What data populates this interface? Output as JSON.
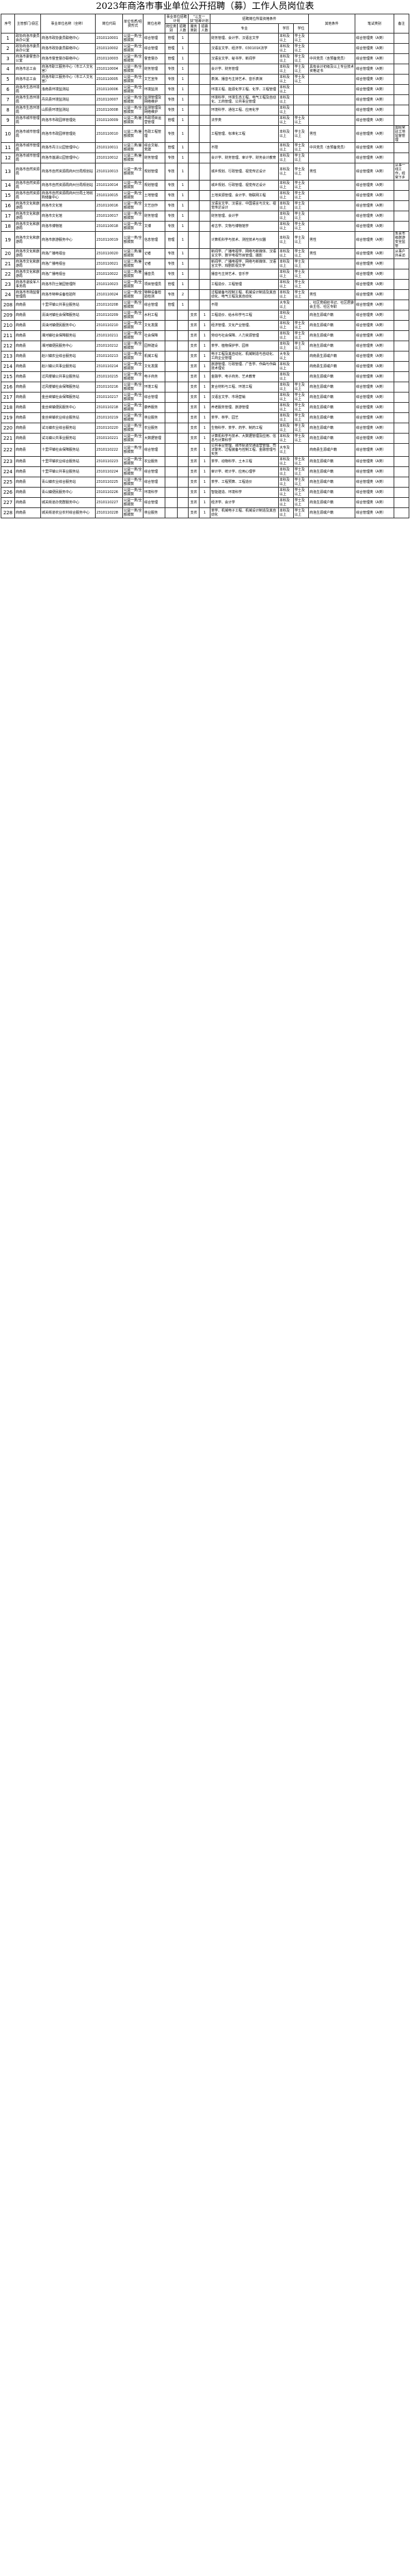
{
  "title": "2023年商洛市事业单位公开招聘（募）工作人员岗位表",
  "headers": {
    "no": "序号",
    "dept": "主管部门/县区",
    "unit": "事业单位名称（全称）",
    "code": "岗位代码",
    "nature": "单位性质/经费形式",
    "post": "岗位名称",
    "plan": "事业单位招聘计划",
    "plan_type": "岗位类别",
    "plan_count": "招聘人数",
    "sanzhi": "\"三支一扶\"招募计划",
    "sanzhi_type": "服务类别",
    "sanzhi_count": "招募人数",
    "req": "招聘岗位所需资格条件",
    "major": "专业",
    "edu": "学历",
    "degree": "学位",
    "other": "其他条件",
    "exam": "笔试类别",
    "note": "备注"
  },
  "rows": [
    [
      "1",
      "政协商洛市委员会办公室",
      "商洛市政协委员联络中心",
      "2310110001",
      "公益一类/全额拨款",
      "综合管理",
      "管理",
      "1",
      "",
      "",
      "财务管理、会计学、汉语言文学",
      "本科及以上",
      "学士及以上",
      "",
      "综合管理类（A类）",
      ""
    ],
    [
      "2",
      "政协商洛市委员会办公室",
      "商洛市政协委员联络中心",
      "2310110002",
      "公益一类/全额拨款",
      "综合管理",
      "管理",
      "1",
      "",
      "",
      "汉语言文学、经济学、030101K法学",
      "本科及以上",
      "学士及以上",
      "",
      "综合管理类（A类）",
      ""
    ],
    [
      "3",
      "商洛市委督查办公室",
      "商洛市督查督办联络中心",
      "2310110003",
      "公益一类/全额拨款",
      "督查督办",
      "管理",
      "1",
      "",
      "",
      "汉语言文学、秘书学、新闻学",
      "本科及以上",
      "学士及以上",
      "中共党员（含预备党员）",
      "综合管理类（A类）",
      ""
    ],
    [
      "4",
      "商洛市总工会",
      "商洛市职工服务中心（市工人文化宫）",
      "2310110004",
      "公益一类/全额拨款",
      "财务管理",
      "专技",
      "1",
      "",
      "",
      "会计学、财务管理",
      "本科及以上",
      "学士及以上",
      "具有会计初级及以上专业技术资格证书",
      "综合管理类（A类）",
      ""
    ],
    [
      "5",
      "商洛市总工会",
      "商洛市职工服务中心（市工人文化宫）",
      "2310110005",
      "公益一类/全额拨款",
      "文艺宣传",
      "专技",
      "1",
      "",
      "",
      "表演、播音与主持艺术、音乐表演",
      "本科及以上",
      "学士及以上",
      "",
      "综合管理类（A类）",
      ""
    ],
    [
      "6",
      "商洛市生态环境局",
      "洛南县环境监测站",
      "2310110006",
      "公益一类/全额拨款",
      "环境监测",
      "专技",
      "1",
      "",
      "",
      "环境工程、能源化学工程、化学、工程管理",
      "本科及以上",
      "",
      "",
      "综合管理类（A类）",
      ""
    ],
    [
      "7",
      "商洛市生态环境局",
      "丹凤县环境监测站",
      "2310110007",
      "公益一类/全额拨款",
      "监测管理及网络维护",
      "专技",
      "1",
      "",
      "",
      "环境科学、环境生态工程、电气工程及自动化、工商管理、公共事业管理",
      "本科及以上",
      "",
      "",
      "综合管理类（A类）",
      ""
    ],
    [
      "8",
      "商洛市生态环境局",
      "山阳县环境监测站",
      "2310110008",
      "公益一类/全额拨款",
      "监测管理及网络维护",
      "专技",
      "1",
      "",
      "",
      "环境科学、通信工程、应用化学",
      "本科及以上",
      "",
      "",
      "综合管理类（A类）",
      ""
    ],
    [
      "9",
      "商洛市城市管理局",
      "商洛市市政园林管理处",
      "2310110009",
      "公益二类/差额拨款",
      "市政项目运营管理",
      "管理",
      "1",
      "",
      "",
      "法学类",
      "本科及以上",
      "学士及以上",
      "",
      "综合管理类（A类）",
      ""
    ],
    [
      "10",
      "商洛市城市管理局",
      "商洛市市政园林管理处",
      "2310110010",
      "公益二类/差额拨款",
      "市政工程管理",
      "专技",
      "1",
      "",
      "",
      "工程管理、标准化工程",
      "本科及以上",
      "学士及以上",
      "男性",
      "综合管理类（A类）",
      "需经常驻工地监督管理"
    ],
    [
      "11",
      "商洛市城市管理局",
      "商洛市丹江公园管理中心",
      "2310110011",
      "公益二类/差额拨款",
      "综合文秘、党建",
      "管理",
      "1",
      "",
      "",
      "不限",
      "本科及以上",
      "学士及以上",
      "中共党员（含预备党员）",
      "综合管理类（A类）",
      ""
    ],
    [
      "12",
      "商洛市城市管理局",
      "商洛市莲湖公园管理中心",
      "2310110012",
      "公益二类/差额拨款",
      "财务管理",
      "专技",
      "1",
      "",
      "",
      "会计学、财务管理、审计学、财务会计教育",
      "本科及以上",
      "学士及以上",
      "",
      "综合管理类（A类）",
      ""
    ],
    [
      "13",
      "商洛市自然资源局",
      "商洛市自然资源局商州分局规划站",
      "2310110013",
      "公益一类/全额拨款",
      "规划管理",
      "专技",
      "1",
      "",
      "",
      "城乡规划、行政管理、视觉传达设计",
      "本科及以上",
      "学士及以上",
      "男性",
      "综合管理类（A类）",
      "从事一线工作，经常下乡"
    ],
    [
      "14",
      "商洛市自然资源局",
      "商洛市自然资源局商州分局规划站",
      "2310110014",
      "公益一类/全额拨款",
      "规划管理",
      "专技",
      "1",
      "",
      "",
      "城乡规划、行政管理、视觉传达设计",
      "本科及以上",
      "学士及以上",
      "",
      "综合管理类（A类）",
      ""
    ],
    [
      "15",
      "商洛市自然资源局",
      "商洛市自然资源局商州分局土地收购储备中心",
      "2310110015",
      "公益一类/全额拨款",
      "土地管理",
      "专技",
      "1",
      "",
      "",
      "土地资源管理、会计学、物联网工程",
      "本科及以上",
      "学士及以上",
      "",
      "综合管理类（A类）",
      ""
    ],
    [
      "16",
      "商洛市文化和旅游局",
      "商洛市文化馆",
      "2310110016",
      "公益一类/全额拨款",
      "文艺创作",
      "专技",
      "1",
      "",
      "",
      "汉语言文学、汉语言、中国语言与文化、视觉传达设计",
      "本科及以上",
      "学士及以上",
      "",
      "综合管理类（A类）",
      ""
    ],
    [
      "17",
      "商洛市文化和旅游局",
      "商洛市文化馆",
      "2310110017",
      "公益一类/全额拨款",
      "财务管理",
      "专技",
      "1",
      "",
      "",
      "财务管理、会计学",
      "本科及以上",
      "学士及以上",
      "",
      "综合管理类（A类）",
      ""
    ],
    [
      "18",
      "商洛市文化和旅游局",
      "商洛市博物馆",
      "2310110018",
      "公益一类/全额拨款",
      "文博",
      "专技",
      "1",
      "",
      "",
      "考古学、文物与博物馆学",
      "本科及以上",
      "学士及以上",
      "",
      "综合管理类（A类）",
      ""
    ],
    [
      "19",
      "商洛市文化和旅游局",
      "商洛市旅游服务中心",
      "2310110019",
      "公益一类/全额拨款",
      "信息管理",
      "管理",
      "1",
      "",
      "",
      "计算机科学与技术、测控技术与仪器",
      "本科及以上",
      "学士及以上",
      "男性",
      "综合管理类（A类）",
      "负责市级旅游安全监管"
    ],
    [
      "20",
      "商洛市文化和旅游局",
      "商洛广播电视台",
      "2310110020",
      "公益二类/差额拨款",
      "记者",
      "专技",
      "1",
      "",
      "",
      "新闻学、广播电视学、网络与新媒体、汉语言文学、数字电视节目管理、摄影",
      "本科及以上",
      "学士及以上",
      "男性",
      "综合管理类（A类）",
      "从事户外采访"
    ],
    [
      "21",
      "商洛市文化和旅游局",
      "商洛广播电视台",
      "2310110021",
      "公益二类/差额拨款",
      "记者",
      "专技",
      "1",
      "",
      "",
      "新闻学、广播电视学、网络与新媒体、汉语言文学、戏剧影视文学",
      "本科及以上",
      "学士及以上",
      "",
      "综合管理类（A类）",
      ""
    ],
    [
      "22",
      "商洛市文化和旅游局",
      "商洛广播电视台",
      "2310110022",
      "公益二类/差额拨款",
      "播音员",
      "专技",
      "1",
      "",
      "",
      "播音与主持艺术、音乐学",
      "本科及以上",
      "学士及以上",
      "",
      "综合管理类（A类）",
      ""
    ],
    [
      "23",
      "商洛市退役军人事务局",
      "商洛市烈士陵园管理所",
      "2310110023",
      "公益一类/全额拨款",
      "项目管理员",
      "管理",
      "1",
      "",
      "",
      "工程造价、工程管理",
      "本科及以上",
      "学士及以上",
      "",
      "综合管理类（A类）",
      ""
    ],
    [
      "24",
      "商洛市市场监督管理局",
      "商洛市特种设备检验所",
      "2310110024",
      "公益一类/全额拨款",
      "特种设备检验检测",
      "专技",
      "2",
      "",
      "",
      "过程装备与控制工程、机械设计制造及其自动化、电气工程及其自动化",
      "本科及以上",
      "学士及以上",
      "男性",
      "综合管理类（A类）",
      ""
    ],
    [
      "208",
      "商南县",
      "十里坪镇公共事业服务站",
      "2310110208",
      "公益一类/全额拨款",
      "综合管理",
      "管理",
      "1",
      "",
      "",
      "不限",
      "大专及以上",
      "",
      "、社区党组织书记、社区居委会主任、社区专职",
      "综合管理类（A类）",
      ""
    ],
    [
      "209",
      "商南县",
      "清油河镇社会保障服务站",
      "2310110209",
      "公益一类/全额拨款",
      "水利工程",
      "",
      "",
      "支农",
      "1",
      "工程造价、给水科学与工程",
      "本科及以上",
      "",
      "商洛生源或户籍",
      "综合管理类（A类）",
      ""
    ],
    [
      "210",
      "商南县",
      "清油河镇便民服务中心",
      "2310110210",
      "公益一类/全额拨款",
      "文化发展",
      "",
      "",
      "支农",
      "1",
      "经济管理、文化产业管理、",
      "本科及以上",
      "学士及以上",
      "商洛生源或户籍",
      "综合管理类（A类）",
      ""
    ],
    [
      "211",
      "商南县",
      "湘河镇社会保障服务站",
      "2310110211",
      "公益一类/全额拨款",
      "社会保障",
      "",
      "",
      "支农",
      "1",
      "劳动与社会保障、人力资源管理",
      "本科及以上",
      "学士及以上",
      "商洛生源或户籍",
      "综合管理类（A类）",
      ""
    ],
    [
      "212",
      "商南县",
      "湘河镇便民服务中心",
      "2310110212",
      "公益一类/全额拨款",
      "园林建设",
      "",
      "",
      "支农",
      "1",
      "茶学、植物保护学、园林",
      "本科及以上",
      "学士及以上",
      "商洛生源或户籍",
      "综合管理类（A类）",
      ""
    ],
    [
      "213",
      "商南县",
      "赵川镇农业综合服务站",
      "2310110213",
      "公益一类/全额拨款",
      "机械工程",
      "",
      "",
      "支农",
      "1",
      "电子工程及其自动化、机械制造与自动化、工商企业管理",
      "大专及以上",
      "",
      "商南县生源或户籍",
      "综合管理类（A类）",
      ""
    ],
    [
      "214",
      "商南县",
      "赵川镇公共事业服务站",
      "2310110214",
      "公益一类/全额拨款",
      "文化发展",
      "",
      "",
      "支农",
      "1",
      "旅游管理、行政管理、广告学、作曲与作曲技术理论",
      "本科及以上",
      "",
      "商南县生源或户籍",
      "综合管理类（A类）",
      ""
    ],
    [
      "215",
      "商南县",
      "过风楼镇公共事业服务站",
      "2310110215",
      "公益一类/全额拨款",
      "电子商务",
      "",
      "",
      "支农",
      "1",
      "金融学、电子商务、艺术教育",
      "本科及以上",
      "",
      "商洛生源或户籍",
      "综合管理类（A类）",
      ""
    ],
    [
      "216",
      "商南县",
      "过风楼镇社会保障服务站",
      "2310110216",
      "公益一类/全额拨款",
      "环境工程",
      "",
      "",
      "支农",
      "1",
      "复合材料与工程、环境工程",
      "本科及以上",
      "学士及以上",
      "商洛生源或户籍",
      "综合管理类（A类）",
      ""
    ],
    [
      "217",
      "商南县",
      "金丝峡镇社会保障服务站",
      "2310110217",
      "公益一类/全额拨款",
      "综合管理",
      "",
      "",
      "支农",
      "1",
      "汉语言文学、市场营销",
      "本科及以上",
      "学士及以上",
      "商洛生源或户籍",
      "综合管理类（A类）",
      ""
    ],
    [
      "218",
      "商南县",
      "金丝峡镇便民服务中心",
      "2310110218",
      "公益一类/全额拨款",
      "康养服务",
      "",
      "",
      "支农",
      "1",
      "养老服务管理、旅游管理",
      "本科及以上",
      "学士及以上",
      "商洛生源或户籍",
      "综合管理类（A类）",
      ""
    ],
    [
      "219",
      "商南县",
      "金丝峡镇农业综合服务站",
      "2310110219",
      "公益一类/全额拨款",
      "林业服务",
      "",
      "",
      "支农",
      "1",
      "茶学、林学、园艺",
      "本科及以上",
      "学士及以上",
      "商洛生源或户籍",
      "综合管理类（A类）",
      ""
    ],
    [
      "220",
      "商南县",
      "试马镇农业综合服务站",
      "2310110220",
      "公益一类/全额拨款",
      "农业服务",
      "",
      "",
      "支农",
      "1",
      "生物科学、茶学、药学、制药工程",
      "本科及以上",
      "学士及以上",
      "商洛生源或户籍",
      "综合管理类（A类）",
      ""
    ],
    [
      "221",
      "商南县",
      "试马镇公共事业服务站",
      "2310110221",
      "公益一类/全额拨款",
      "大数据管理",
      "",
      "",
      "支农",
      "1",
      "计算机科学与技术、大数据管理及应用、信息与计算科学",
      "本科及以上",
      "学士及以上",
      "商洛生源或户籍",
      "综合管理类（A类）",
      ""
    ],
    [
      "222",
      "商南县",
      "十里坪镇社会保障服务站",
      "2310110222",
      "公益一类/全额拨款",
      "综合管理",
      "",
      "",
      "支农",
      "1",
      "公共事业管理、城市轨道交通运营管理、司法警务、过程装备与控制工程、金融管理与实务",
      "大专及以上",
      "",
      "商南县生源或户籍",
      "综合管理类（A类）",
      ""
    ],
    [
      "223",
      "商南县",
      "十里坪镇农业综合服务站",
      "2310110223",
      "公益一类/全额拨款",
      "农业服务",
      "",
      "",
      "支农",
      "1",
      "茶学、动物科学、土木工程",
      "本科及以上",
      "学士及以上",
      "商洛生源或户籍",
      "综合管理类（A类）",
      ""
    ],
    [
      "224",
      "商南县",
      "十里坪镇公共事业服务站",
      "2310110224",
      "公益一类/全额拨款",
      "综合管理",
      "",
      "",
      "支农",
      "1",
      "审计学、统计学、应用心理学",
      "本科及以上",
      "学士及以上",
      "商洛生源或户籍",
      "综合管理类（A类）",
      ""
    ],
    [
      "225",
      "商南县",
      "青山镇农业综合服务站",
      "2310110225",
      "公益一类/全额拨款",
      "综合管理",
      "",
      "",
      "支农",
      "1",
      "茶学、工程预算、工程造价",
      "本科及以上",
      "学士及以上",
      "商洛生源或户籍",
      "综合管理类（A类）",
      ""
    ],
    [
      "226",
      "商南县",
      "青山镇便民服务中心",
      "2310110226",
      "公益一类/全额拨款",
      "环境科学",
      "",
      "",
      "支农",
      "1",
      "智能建造、环境科学",
      "本科及以上",
      "学士及以上",
      "商洛生源或户籍",
      "综合管理类（A类）",
      ""
    ],
    [
      "227",
      "商南县",
      "城关街道办党群服务中心",
      "2310110227",
      "公益一类/全额拨款",
      "综合管理",
      "",
      "",
      "支农",
      "1",
      "经济学、会计学",
      "本科及以上",
      "学士及以上",
      "商洛生源或户籍",
      "综合管理类（A类）",
      ""
    ],
    [
      "228",
      "商南县",
      "城关街道农业农村综合服务中心",
      "2310110228",
      "公益一类/全额拨款",
      "林业服务",
      "",
      "",
      "支农",
      "1",
      "茶学、机械电子工程、机械设计制造及其自动化",
      "本科及以上",
      "学士及以上",
      "商洛生源或户籍",
      "综合管理类（A类）",
      ""
    ]
  ]
}
